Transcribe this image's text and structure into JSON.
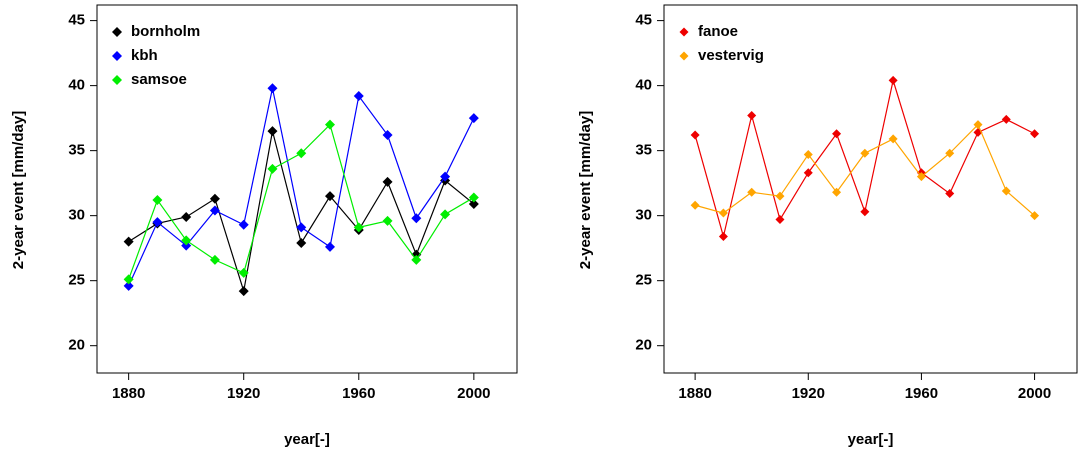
{
  "chart_data": [
    {
      "type": "line",
      "xlabel": "year[-]",
      "ylabel": "2-year event [mm/day]",
      "x": [
        1880,
        1890,
        1900,
        1910,
        1920,
        1930,
        1940,
        1950,
        1960,
        1970,
        1980,
        1990,
        2000
      ],
      "xlim": [
        1869,
        2015
      ],
      "xticks": [
        1880,
        1920,
        1960,
        2000
      ],
      "ylim": [
        17.9,
        46.2
      ],
      "yticks": [
        20,
        25,
        30,
        35,
        40,
        45
      ],
      "legend": "top-left",
      "series": [
        {
          "name": "bornholm",
          "color": "#000000",
          "values": [
            28.0,
            29.4,
            29.9,
            31.3,
            24.2,
            36.5,
            27.9,
            31.5,
            28.9,
            32.6,
            27.0,
            32.7,
            30.9
          ]
        },
        {
          "name": "kbh",
          "color": "#0000ff",
          "values": [
            24.6,
            29.5,
            27.7,
            30.4,
            29.3,
            39.8,
            29.1,
            27.6,
            39.2,
            36.2,
            29.8,
            33.0,
            37.5
          ]
        },
        {
          "name": "samsoe",
          "color": "#00ee00",
          "values": [
            25.1,
            31.2,
            28.1,
            26.6,
            25.6,
            33.6,
            34.8,
            37.0,
            29.1,
            29.6,
            26.6,
            30.1,
            31.4
          ]
        }
      ]
    },
    {
      "type": "line",
      "xlabel": "year[-]",
      "ylabel": "2-year event [mm/day]",
      "x": [
        1880,
        1890,
        1900,
        1910,
        1920,
        1930,
        1940,
        1950,
        1960,
        1970,
        1980,
        1990,
        2000
      ],
      "xlim": [
        1869,
        2015
      ],
      "xticks": [
        1880,
        1920,
        1960,
        2000
      ],
      "ylim": [
        17.9,
        46.2
      ],
      "yticks": [
        20,
        25,
        30,
        35,
        40,
        45
      ],
      "legend": "top-left",
      "series": [
        {
          "name": "fanoe",
          "color": "#ee0000",
          "values": [
            36.2,
            28.4,
            37.7,
            29.7,
            33.3,
            36.3,
            30.3,
            40.4,
            33.3,
            31.7,
            36.4,
            37.4,
            36.3
          ]
        },
        {
          "name": "vestervig",
          "color": "#ffa500",
          "values": [
            30.8,
            30.2,
            31.8,
            31.5,
            34.7,
            31.8,
            34.8,
            35.9,
            33.0,
            34.8,
            37.0,
            31.9,
            30.0
          ]
        }
      ]
    }
  ]
}
